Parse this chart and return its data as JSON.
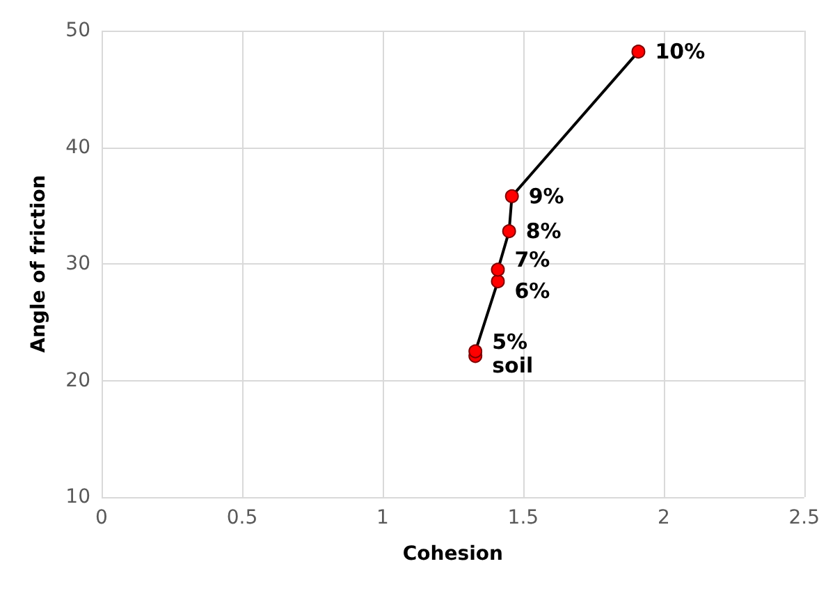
{
  "chart_data": {
    "type": "line",
    "xlabel": "Cohesion",
    "ylabel": "Angle of friction",
    "x": [
      1.33,
      1.33,
      1.41,
      1.41,
      1.45,
      1.46,
      1.91
    ],
    "series": [
      {
        "color": "#000000",
        "colors": [
          "#ff0000",
          "#ff0000",
          "#ff0000",
          "#ff0000",
          "#ff0000",
          "#ff0000",
          "#ff0000"
        ],
        "values": [
          22.1,
          22.5,
          28.5,
          29.5,
          32.8,
          35.8,
          48.2
        ]
      }
    ],
    "annotations": [
      {
        "text": "soil",
        "x": 1.33,
        "y": 22.1
      },
      {
        "text": "5%",
        "x": 1.33,
        "y": 22.5
      },
      {
        "text": "6%",
        "x": 1.41,
        "y": 28.5
      },
      {
        "text": "7%",
        "x": 1.41,
        "y": 29.5
      },
      {
        "text": "8%",
        "x": 1.45,
        "y": 32.8
      },
      {
        "text": "9%",
        "x": 1.46,
        "y": 35.8
      },
      {
        "text": "10%",
        "x": 1.91,
        "y": 48.2
      }
    ],
    "marker": "circle",
    "line_style": "solid",
    "xlim": [
      0,
      2.5
    ],
    "xticks": [
      0,
      0.5,
      1,
      1.5,
      2,
      2.5
    ],
    "ylim": [
      10,
      50
    ],
    "yticks": [
      10,
      20,
      30,
      40,
      50
    ],
    "grid": true
  }
}
